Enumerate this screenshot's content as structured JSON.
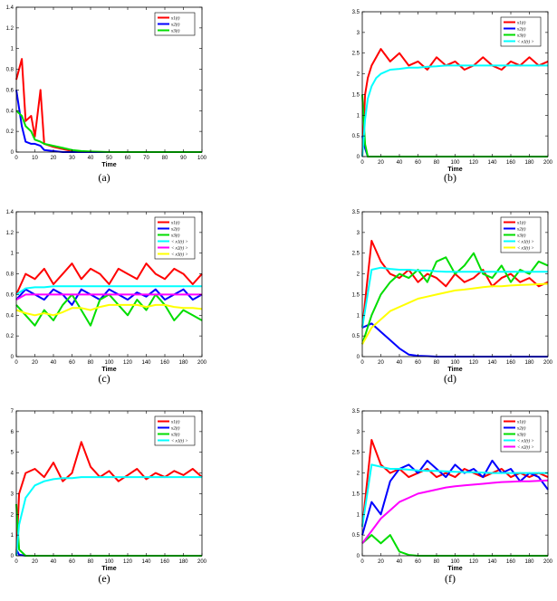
{
  "chart_data": [
    {
      "id": "a",
      "caption": "(a)",
      "type": "line",
      "xlabel": "Time",
      "xlim": [
        0,
        100
      ],
      "xstep": 10,
      "ylim": [
        0,
        1.4
      ],
      "ystep": 0.2,
      "grid": false,
      "legend_placement": "top-right",
      "x": [
        0,
        3,
        5,
        8,
        10,
        13,
        15,
        20,
        25,
        30,
        35,
        40,
        50,
        60,
        70,
        80,
        90,
        100
      ],
      "series": [
        {
          "name": "x1(t)",
          "color": "#ff0000",
          "values": [
            0.7,
            0.9,
            0.3,
            0.35,
            0.15,
            0.6,
            0.08,
            0.05,
            0.03,
            0.01,
            0,
            0,
            0,
            0,
            0,
            0,
            0,
            0
          ]
        },
        {
          "name": "x2(t)",
          "color": "#0000ff",
          "values": [
            0.6,
            0.25,
            0.1,
            0.08,
            0.08,
            0.06,
            0.02,
            0.01,
            0,
            0,
            0,
            0,
            0,
            0,
            0,
            0,
            0,
            0
          ]
        },
        {
          "name": "x3(t)",
          "color": "#00dd00",
          "values": [
            0.4,
            0.35,
            0.25,
            0.2,
            0.12,
            0.1,
            0.08,
            0.06,
            0.04,
            0.02,
            0.01,
            0.005,
            0,
            0,
            0,
            0,
            0,
            0
          ]
        }
      ]
    },
    {
      "id": "b",
      "caption": "(b)",
      "type": "line",
      "xlabel": "Time",
      "xlim": [
        0,
        200
      ],
      "xstep": 20,
      "ylim": [
        0,
        3.5
      ],
      "ystep": 0.5,
      "grid": false,
      "legend_placement": "top-right",
      "x": [
        0,
        3,
        6,
        10,
        15,
        20,
        30,
        40,
        50,
        60,
        70,
        80,
        90,
        100,
        110,
        120,
        130,
        140,
        150,
        160,
        170,
        180,
        190,
        200
      ],
      "series": [
        {
          "name": "x1(t)",
          "color": "#ff0000",
          "values": [
            0,
            1.5,
            1.9,
            2.2,
            2.4,
            2.6,
            2.3,
            2.5,
            2.2,
            2.3,
            2.1,
            2.4,
            2.2,
            2.3,
            2.1,
            2.2,
            2.4,
            2.2,
            2.1,
            2.3,
            2.2,
            2.4,
            2.2,
            2.3
          ]
        },
        {
          "name": "x2(t)",
          "color": "#0000ff",
          "values": [
            0.5,
            0.2,
            0,
            0,
            0,
            0,
            0,
            0,
            0,
            0,
            0,
            0,
            0,
            0,
            0,
            0,
            0,
            0,
            0,
            0,
            0,
            0,
            0,
            0
          ]
        },
        {
          "name": "x3(t)",
          "color": "#00dd00",
          "values": [
            1.5,
            0.3,
            0,
            0,
            0,
            0,
            0,
            0,
            0,
            0,
            0,
            0,
            0,
            0,
            0,
            0,
            0,
            0,
            0,
            0,
            0,
            0,
            0,
            0
          ]
        },
        {
          "name": "< x1(t) >",
          "color": "#00ffff",
          "values": [
            0,
            0.9,
            1.4,
            1.7,
            1.9,
            2.0,
            2.1,
            2.12,
            2.15,
            2.15,
            2.17,
            2.18,
            2.2,
            2.2,
            2.2,
            2.2,
            2.2,
            2.2,
            2.2,
            2.2,
            2.2,
            2.2,
            2.2,
            2.2
          ]
        }
      ]
    },
    {
      "id": "c",
      "caption": "(c)",
      "type": "line",
      "xlabel": "Time",
      "xlim": [
        0,
        200
      ],
      "xstep": 20,
      "ylim": [
        0,
        1.4
      ],
      "ystep": 0.2,
      "grid": false,
      "legend_placement": "top-right",
      "x": [
        0,
        10,
        20,
        30,
        40,
        50,
        60,
        70,
        80,
        90,
        100,
        110,
        120,
        130,
        140,
        150,
        160,
        170,
        180,
        190,
        200
      ],
      "series": [
        {
          "name": "x1(t)",
          "color": "#ff0000",
          "values": [
            0.6,
            0.8,
            0.75,
            0.85,
            0.7,
            0.8,
            0.9,
            0.75,
            0.85,
            0.8,
            0.7,
            0.85,
            0.8,
            0.75,
            0.9,
            0.8,
            0.75,
            0.85,
            0.8,
            0.7,
            0.8
          ]
        },
        {
          "name": "x2(t)",
          "color": "#0000ff",
          "values": [
            0.55,
            0.65,
            0.6,
            0.55,
            0.65,
            0.6,
            0.5,
            0.65,
            0.6,
            0.55,
            0.65,
            0.6,
            0.55,
            0.62,
            0.58,
            0.65,
            0.55,
            0.6,
            0.65,
            0.55,
            0.6
          ]
        },
        {
          "name": "x3(t)",
          "color": "#00dd00",
          "values": [
            0.5,
            0.4,
            0.3,
            0.45,
            0.35,
            0.5,
            0.6,
            0.45,
            0.3,
            0.55,
            0.6,
            0.5,
            0.4,
            0.55,
            0.45,
            0.6,
            0.5,
            0.35,
            0.45,
            0.4,
            0.35
          ]
        },
        {
          "name": "< x1(t) >",
          "color": "#00ffff",
          "values": [
            0.6,
            0.66,
            0.67,
            0.67,
            0.68,
            0.68,
            0.68,
            0.68,
            0.68,
            0.68,
            0.68,
            0.68,
            0.68,
            0.68,
            0.68,
            0.68,
            0.68,
            0.68,
            0.68,
            0.68,
            0.68
          ]
        },
        {
          "name": "< x2(t) >",
          "color": "#ff00ff",
          "values": [
            0.55,
            0.6,
            0.6,
            0.6,
            0.6,
            0.6,
            0.6,
            0.6,
            0.6,
            0.6,
            0.6,
            0.6,
            0.6,
            0.6,
            0.6,
            0.6,
            0.6,
            0.6,
            0.6,
            0.6,
            0.6
          ]
        },
        {
          "name": "< x3(t) >",
          "color": "#ffff00",
          "values": [
            0.45,
            0.42,
            0.4,
            0.42,
            0.4,
            0.43,
            0.47,
            0.47,
            0.45,
            0.48,
            0.5,
            0.5,
            0.5,
            0.5,
            0.48,
            0.5,
            0.5,
            0.48,
            0.47,
            0.47,
            0.46
          ]
        }
      ]
    },
    {
      "id": "d",
      "caption": "(d)",
      "type": "line",
      "xlabel": "Time",
      "xlim": [
        0,
        200
      ],
      "xstep": 20,
      "ylim": [
        0,
        3.5
      ],
      "ystep": 0.5,
      "grid": false,
      "legend_placement": "top-right",
      "x": [
        0,
        10,
        20,
        30,
        40,
        50,
        60,
        70,
        80,
        90,
        100,
        110,
        120,
        130,
        140,
        150,
        160,
        170,
        180,
        190,
        200
      ],
      "series": [
        {
          "name": "x1(t)",
          "color": "#ff0000",
          "values": [
            0.7,
            2.8,
            2.3,
            2.0,
            1.9,
            2.1,
            1.8,
            2.0,
            1.9,
            1.7,
            2.0,
            1.8,
            1.9,
            2.1,
            1.7,
            1.9,
            2.0,
            1.8,
            1.9,
            1.7,
            1.8
          ]
        },
        {
          "name": "x2(t)",
          "color": "#0000ff",
          "values": [
            0.7,
            0.8,
            0.6,
            0.4,
            0.2,
            0.05,
            0.02,
            0.01,
            0,
            0,
            0,
            0,
            0,
            0,
            0,
            0,
            0,
            0,
            0,
            0,
            0
          ]
        },
        {
          "name": "x3(t)",
          "color": "#00dd00",
          "values": [
            0.3,
            1.0,
            1.5,
            1.8,
            2.0,
            1.9,
            2.1,
            1.8,
            2.3,
            2.4,
            2.0,
            2.2,
            2.5,
            2.0,
            1.9,
            2.2,
            1.8,
            2.1,
            2.0,
            2.3,
            2.2
          ]
        },
        {
          "name": "< x1(t) >",
          "color": "#00ffff",
          "values": [
            0.7,
            2.1,
            2.15,
            2.12,
            2.1,
            2.1,
            2.08,
            2.08,
            2.06,
            2.05,
            2.05,
            2.05,
            2.05,
            2.05,
            2.05,
            2.05,
            2.05,
            2.05,
            2.05,
            2.05,
            2.05
          ]
        },
        {
          "name": "< x3(t) >",
          "color": "#ffff00",
          "values": [
            0.3,
            0.7,
            0.9,
            1.1,
            1.2,
            1.3,
            1.4,
            1.45,
            1.5,
            1.55,
            1.6,
            1.62,
            1.65,
            1.68,
            1.7,
            1.7,
            1.72,
            1.73,
            1.74,
            1.75,
            1.76
          ]
        }
      ]
    },
    {
      "id": "e",
      "caption": "(e)",
      "type": "line",
      "xlabel": "Time",
      "xlim": [
        0,
        200
      ],
      "xstep": 20,
      "ylim": [
        0,
        7
      ],
      "ystep": 1,
      "grid": false,
      "legend_placement": "top-right",
      "x": [
        0,
        3,
        10,
        20,
        30,
        40,
        50,
        60,
        70,
        80,
        90,
        100,
        110,
        120,
        130,
        140,
        150,
        160,
        170,
        180,
        190,
        200
      ],
      "series": [
        {
          "name": "x1(t)",
          "color": "#ff0000",
          "values": [
            0,
            3,
            4,
            4.2,
            3.8,
            4.5,
            3.6,
            4,
            5.5,
            4.3,
            3.8,
            4.1,
            3.6,
            3.9,
            4.2,
            3.7,
            4,
            3.8,
            4.1,
            3.9,
            4.2,
            3.8
          ]
        },
        {
          "name": "x2(t)",
          "color": "#0000ff",
          "values": [
            0.3,
            0.05,
            0,
            0,
            0,
            0,
            0,
            0,
            0,
            0,
            0,
            0,
            0,
            0,
            0,
            0,
            0,
            0,
            0,
            0,
            0,
            0
          ]
        },
        {
          "name": "x3(t)",
          "color": "#00dd00",
          "values": [
            2.5,
            0.3,
            0,
            0,
            0,
            0,
            0,
            0,
            0,
            0,
            0,
            0,
            0,
            0,
            0,
            0,
            0,
            0,
            0,
            0,
            0,
            0
          ]
        },
        {
          "name": "< x1(t) >",
          "color": "#00ffff",
          "values": [
            0,
            1.5,
            2.8,
            3.4,
            3.6,
            3.7,
            3.75,
            3.75,
            3.8,
            3.8,
            3.8,
            3.8,
            3.8,
            3.8,
            3.8,
            3.8,
            3.8,
            3.8,
            3.8,
            3.8,
            3.8,
            3.8
          ]
        }
      ]
    },
    {
      "id": "f",
      "caption": "(f)",
      "type": "line",
      "xlabel": "Time",
      "xlim": [
        0,
        200
      ],
      "xstep": 20,
      "ylim": [
        0,
        3.5
      ],
      "ystep": 0.5,
      "grid": false,
      "legend_placement": "top-right",
      "x": [
        0,
        10,
        20,
        30,
        40,
        50,
        60,
        70,
        80,
        90,
        100,
        110,
        120,
        130,
        140,
        150,
        160,
        170,
        180,
        190,
        200
      ],
      "series": [
        {
          "name": "x1(t)",
          "color": "#ff0000",
          "values": [
            0.7,
            2.8,
            2.2,
            2.0,
            2.1,
            1.9,
            2.0,
            2.1,
            1.9,
            2.0,
            1.9,
            2.1,
            2.0,
            1.9,
            2.0,
            2.1,
            1.9,
            2.0,
            1.9,
            2.0,
            1.9
          ]
        },
        {
          "name": "x2(t)",
          "color": "#0000ff",
          "values": [
            0.5,
            1.3,
            1.0,
            1.8,
            2.1,
            2.2,
            2.0,
            2.3,
            2.1,
            1.9,
            2.2,
            2.0,
            2.1,
            1.9,
            2.3,
            2.0,
            2.1,
            1.8,
            2.0,
            1.9,
            1.6
          ]
        },
        {
          "name": "x3(t)",
          "color": "#00dd00",
          "values": [
            0.3,
            0.5,
            0.3,
            0.5,
            0.1,
            0.02,
            0,
            0,
            0,
            0,
            0,
            0,
            0,
            0,
            0,
            0,
            0,
            0,
            0,
            0,
            0
          ]
        },
        {
          "name": "< x1(t) >",
          "color": "#00ffff",
          "values": [
            0.7,
            2.2,
            2.15,
            2.1,
            2.1,
            2.08,
            2.06,
            2.05,
            2.05,
            2.04,
            2.03,
            2.02,
            2.02,
            2.01,
            2.0,
            2.0,
            2.0,
            2.0,
            2.0,
            2.0,
            2.0
          ]
        },
        {
          "name": "< x2(t) >",
          "color": "#ff00ff",
          "values": [
            0.3,
            0.6,
            0.9,
            1.1,
            1.3,
            1.4,
            1.5,
            1.55,
            1.6,
            1.65,
            1.68,
            1.7,
            1.72,
            1.74,
            1.76,
            1.78,
            1.79,
            1.8,
            1.8,
            1.81,
            1.82
          ]
        }
      ]
    }
  ]
}
